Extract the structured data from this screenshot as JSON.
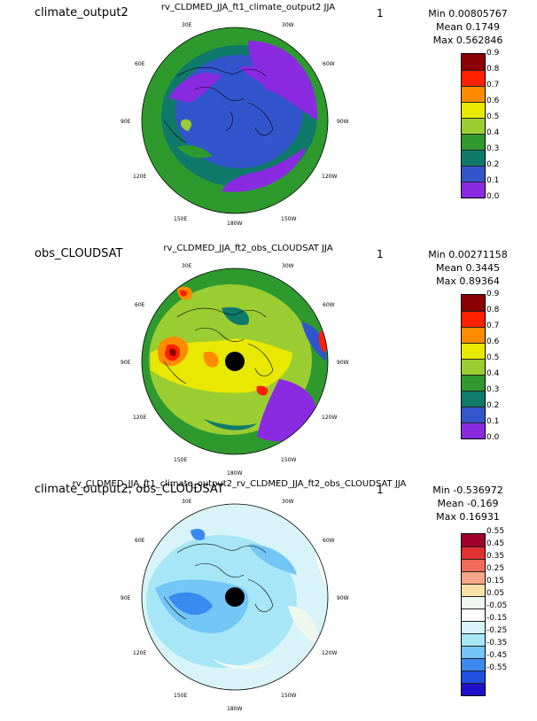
{
  "panels": [
    {
      "left_title": "climate_output2",
      "center_title": "rv_CLDMED_JJA_ft1_climate_output2  JJA",
      "right_mark": "1",
      "stats": {
        "min": "Min 0.00805767",
        "mean": "Mean 0.1749",
        "max": "Max 0.562846"
      },
      "colorbar_colors": [
        "#8b0000",
        "#ff2000",
        "#ff8c00",
        "#e8e800",
        "#9acd32",
        "#2e9a2e",
        "#0f7a6a",
        "#3355cc",
        "#8a2be2"
      ],
      "colorbar_labels": [
        "0.9",
        "0.8",
        "0.7",
        "0.6",
        "0.5",
        "0.4",
        "0.3",
        "0.2",
        "0.1",
        "0.0"
      ]
    },
    {
      "left_title": "obs_CLOUDSAT",
      "center_title": "rv_CLDMED_JJA_ft2_obs_CLOUDSAT  JJA",
      "right_mark": "1",
      "stats": {
        "min": "Min 0.00271158",
        "mean": "Mean 0.3445",
        "max": "Max 0.89364"
      },
      "colorbar_colors": [
        "#8b0000",
        "#ff2000",
        "#ff8c00",
        "#e8e800",
        "#9acd32",
        "#2e9a2e",
        "#0f7a6a",
        "#3355cc",
        "#8a2be2"
      ],
      "colorbar_labels": [
        "0.9",
        "0.8",
        "0.7",
        "0.6",
        "0.5",
        "0.4",
        "0.3",
        "0.2",
        "0.1",
        "0.0"
      ]
    },
    {
      "left_title": "climate_output2; obs_CLOUDSAT",
      "center_title": "rv_CLDMED_JJA_ft1_climate_output2_rv_CLDMED_JJA_ft2_obs_CLOUDSAT  JJA",
      "right_mark": "1",
      "stats": {
        "min": "Min -0.536972",
        "mean": "Mean -0.169",
        "max": "Max 0.16931"
      },
      "colorbar_colors": [
        "#a0002a",
        "#e03030",
        "#f26a5a",
        "#f7a68a",
        "#fde0a8",
        "#eef8ee",
        "#ffffff",
        "#d8f4f8",
        "#a6e6f6",
        "#74c6f6",
        "#3a8af0",
        "#2050e0",
        "#1e10c8"
      ],
      "colorbar_labels": [
        "0.55",
        "0.45",
        "0.35",
        "0.25",
        "0.15",
        "0.05",
        "-0.05",
        "-0.15",
        "-0.25",
        "-0.35",
        "-0.45",
        "-0.55"
      ]
    }
  ],
  "longitude_labels": [
    "30E",
    "30W",
    "60E",
    "60W",
    "90E",
    "90W",
    "120E",
    "120W",
    "150E",
    "150W",
    "180W"
  ]
}
